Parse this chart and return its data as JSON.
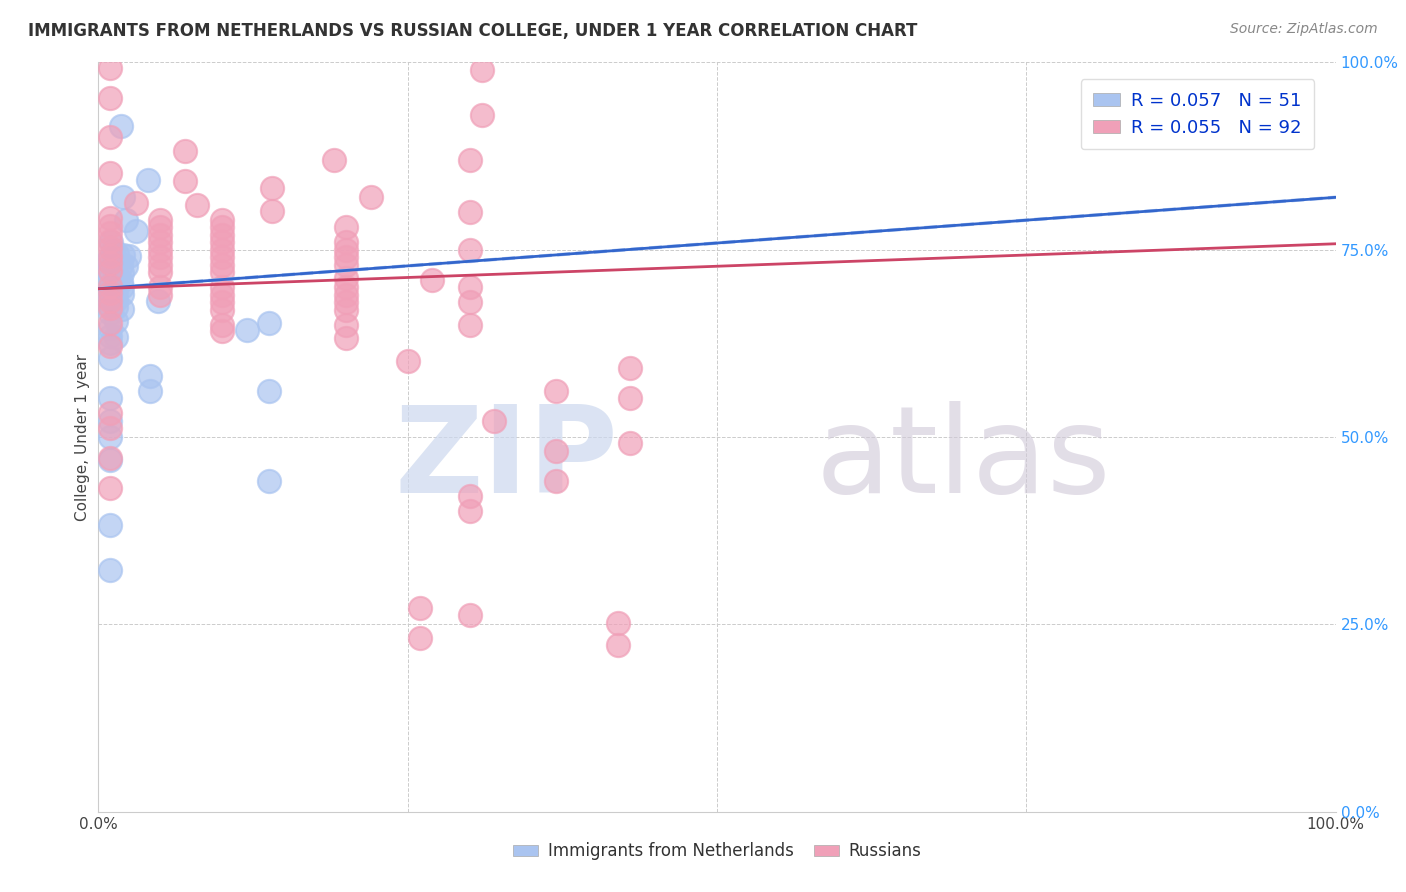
{
  "title": "IMMIGRANTS FROM NETHERLANDS VS RUSSIAN COLLEGE, UNDER 1 YEAR CORRELATION CHART",
  "source": "Source: ZipAtlas.com",
  "ylabel": "College, Under 1 year",
  "xlim": [
    0,
    1
  ],
  "ylim": [
    0,
    1
  ],
  "netherlands_color": "#aac4f0",
  "russians_color": "#f0a0b8",
  "netherlands_line_color": "#3366cc",
  "russians_line_color": "#cc4466",
  "netherlands_scatter": [
    [
      0.018,
      0.915
    ],
    [
      0.04,
      0.843
    ],
    [
      0.02,
      0.82
    ],
    [
      0.022,
      0.79
    ],
    [
      0.03,
      0.775
    ],
    [
      0.01,
      0.76
    ],
    [
      0.012,
      0.75
    ],
    [
      0.015,
      0.745
    ],
    [
      0.02,
      0.743
    ],
    [
      0.025,
      0.742
    ],
    [
      0.008,
      0.735
    ],
    [
      0.012,
      0.732
    ],
    [
      0.018,
      0.73
    ],
    [
      0.022,
      0.728
    ],
    [
      0.008,
      0.722
    ],
    [
      0.013,
      0.72
    ],
    [
      0.019,
      0.719
    ],
    [
      0.009,
      0.712
    ],
    [
      0.013,
      0.71
    ],
    [
      0.018,
      0.708
    ],
    [
      0.009,
      0.703
    ],
    [
      0.014,
      0.701
    ],
    [
      0.019,
      0.7
    ],
    [
      0.009,
      0.695
    ],
    [
      0.014,
      0.693
    ],
    [
      0.019,
      0.691
    ],
    [
      0.009,
      0.685
    ],
    [
      0.014,
      0.683
    ],
    [
      0.048,
      0.682
    ],
    [
      0.009,
      0.675
    ],
    [
      0.014,
      0.673
    ],
    [
      0.019,
      0.671
    ],
    [
      0.009,
      0.665
    ],
    [
      0.014,
      0.655
    ],
    [
      0.138,
      0.652
    ],
    [
      0.009,
      0.645
    ],
    [
      0.12,
      0.643
    ],
    [
      0.009,
      0.635
    ],
    [
      0.014,
      0.633
    ],
    [
      0.009,
      0.625
    ],
    [
      0.009,
      0.605
    ],
    [
      0.042,
      0.582
    ],
    [
      0.042,
      0.562
    ],
    [
      0.138,
      0.562
    ],
    [
      0.009,
      0.552
    ],
    [
      0.009,
      0.522
    ],
    [
      0.009,
      0.5
    ],
    [
      0.009,
      0.47
    ],
    [
      0.138,
      0.442
    ],
    [
      0.009,
      0.382
    ],
    [
      0.009,
      0.322
    ]
  ],
  "russians_scatter": [
    [
      0.009,
      0.992
    ],
    [
      0.31,
      0.99
    ],
    [
      0.009,
      0.952
    ],
    [
      0.31,
      0.93
    ],
    [
      0.009,
      0.9
    ],
    [
      0.07,
      0.882
    ],
    [
      0.19,
      0.87
    ],
    [
      0.3,
      0.87
    ],
    [
      0.009,
      0.852
    ],
    [
      0.07,
      0.842
    ],
    [
      0.14,
      0.832
    ],
    [
      0.22,
      0.82
    ],
    [
      0.03,
      0.812
    ],
    [
      0.08,
      0.81
    ],
    [
      0.14,
      0.802
    ],
    [
      0.3,
      0.8
    ],
    [
      0.009,
      0.792
    ],
    [
      0.05,
      0.79
    ],
    [
      0.1,
      0.79
    ],
    [
      0.009,
      0.782
    ],
    [
      0.05,
      0.78
    ],
    [
      0.1,
      0.78
    ],
    [
      0.2,
      0.78
    ],
    [
      0.009,
      0.772
    ],
    [
      0.05,
      0.77
    ],
    [
      0.1,
      0.77
    ],
    [
      0.009,
      0.762
    ],
    [
      0.05,
      0.76
    ],
    [
      0.1,
      0.76
    ],
    [
      0.2,
      0.76
    ],
    [
      0.009,
      0.752
    ],
    [
      0.05,
      0.75
    ],
    [
      0.1,
      0.75
    ],
    [
      0.2,
      0.75
    ],
    [
      0.3,
      0.75
    ],
    [
      0.009,
      0.742
    ],
    [
      0.05,
      0.74
    ],
    [
      0.1,
      0.74
    ],
    [
      0.2,
      0.74
    ],
    [
      0.009,
      0.732
    ],
    [
      0.05,
      0.73
    ],
    [
      0.1,
      0.73
    ],
    [
      0.2,
      0.73
    ],
    [
      0.009,
      0.722
    ],
    [
      0.05,
      0.72
    ],
    [
      0.1,
      0.72
    ],
    [
      0.2,
      0.712
    ],
    [
      0.27,
      0.71
    ],
    [
      0.009,
      0.702
    ],
    [
      0.05,
      0.7
    ],
    [
      0.1,
      0.7
    ],
    [
      0.2,
      0.7
    ],
    [
      0.3,
      0.7
    ],
    [
      0.009,
      0.692
    ],
    [
      0.05,
      0.69
    ],
    [
      0.1,
      0.69
    ],
    [
      0.2,
      0.69
    ],
    [
      0.009,
      0.682
    ],
    [
      0.1,
      0.68
    ],
    [
      0.2,
      0.68
    ],
    [
      0.3,
      0.68
    ],
    [
      0.009,
      0.672
    ],
    [
      0.1,
      0.67
    ],
    [
      0.2,
      0.67
    ],
    [
      0.009,
      0.652
    ],
    [
      0.1,
      0.65
    ],
    [
      0.2,
      0.65
    ],
    [
      0.3,
      0.65
    ],
    [
      0.1,
      0.642
    ],
    [
      0.2,
      0.632
    ],
    [
      0.009,
      0.622
    ],
    [
      0.25,
      0.602
    ],
    [
      0.43,
      0.592
    ],
    [
      0.37,
      0.562
    ],
    [
      0.43,
      0.552
    ],
    [
      0.009,
      0.532
    ],
    [
      0.32,
      0.522
    ],
    [
      0.009,
      0.512
    ],
    [
      0.43,
      0.492
    ],
    [
      0.37,
      0.482
    ],
    [
      0.009,
      0.472
    ],
    [
      0.37,
      0.442
    ],
    [
      0.009,
      0.432
    ],
    [
      0.3,
      0.422
    ],
    [
      0.3,
      0.402
    ],
    [
      0.26,
      0.272
    ],
    [
      0.3,
      0.262
    ],
    [
      0.42,
      0.252
    ],
    [
      0.26,
      0.232
    ],
    [
      0.42,
      0.222
    ]
  ],
  "netherlands_line": {
    "x0": 0.0,
    "x1": 1.0,
    "y0": 0.698,
    "y1": 0.82
  },
  "russians_line": {
    "x0": 0.0,
    "x1": 1.0,
    "y0": 0.698,
    "y1": 0.758
  },
  "right_tick_labels": [
    "0.0%",
    "25.0%",
    "50.0%",
    "75.0%",
    "100.0%"
  ],
  "right_tick_colors": [
    "#3399ff",
    "#3399ff",
    "#3399ff",
    "#3399ff",
    "#3399ff"
  ],
  "bottom_tick_labels": [
    "0.0%",
    "100.0%"
  ],
  "watermark_zip_color": "#ccd8ee",
  "watermark_atlas_color": "#d0c8d8"
}
